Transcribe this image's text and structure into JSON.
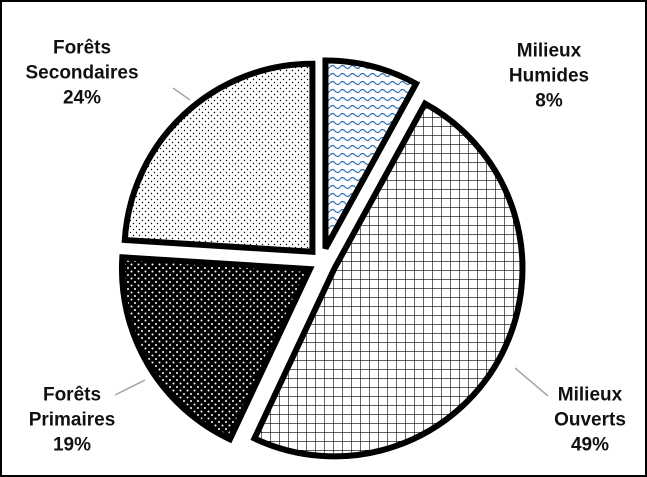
{
  "chart_data": {
    "type": "pie",
    "categories": [
      "Milieux Humides",
      "Milieux Ouverts",
      "Forêts Primaires",
      "Forêts Secondaires"
    ],
    "values": [
      8,
      49,
      19,
      24
    ],
    "value_labels": [
      "8%",
      "49%",
      "19%",
      "24%"
    ]
  }
}
